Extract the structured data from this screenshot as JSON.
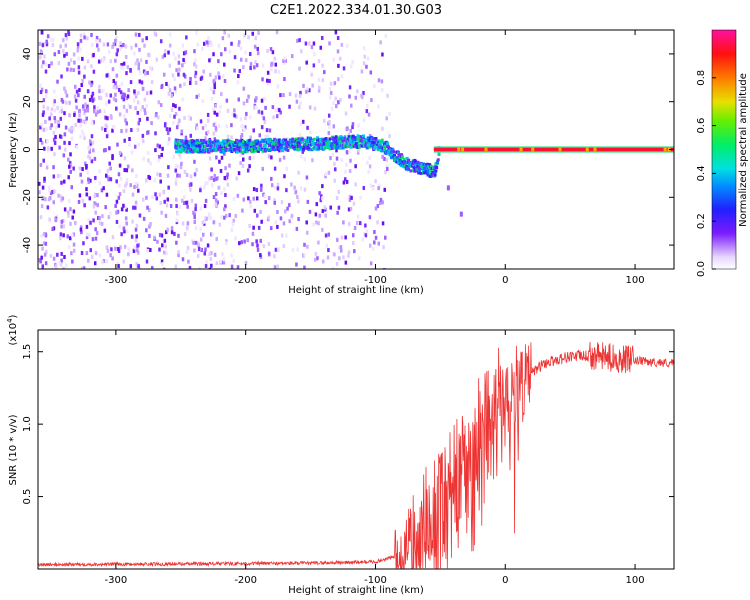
{
  "figure": {
    "title": "C2E1.2022.334.01.30.G03"
  },
  "chart_data": [
    {
      "type": "heatmap",
      "xlabel": "Height of straight line (km)",
      "ylabel": "Frequency (Hz)",
      "xlim": [
        -360,
        130
      ],
      "ylim": [
        -50,
        50
      ],
      "x_ticks": [
        -300,
        -200,
        -100,
        0,
        100
      ],
      "y_ticks": [
        -40,
        -20,
        0,
        20,
        40
      ],
      "colorbar": {
        "label": "Normalized spectral amplitude",
        "range": [
          0.0,
          1.0
        ],
        "ticks": [
          0.0,
          0.2,
          0.4,
          0.6,
          0.8
        ],
        "colormap": "white-purple-blue-cyan-green-yellow-red-magenta"
      },
      "signal_trace": {
        "description_points": [
          {
            "x": -255,
            "y": 2
          },
          {
            "x": -200,
            "y": 2
          },
          {
            "x": -150,
            "y": 3
          },
          {
            "x": -110,
            "y": 4
          },
          {
            "x": -95,
            "y": 2
          },
          {
            "x": -85,
            "y": -2
          },
          {
            "x": -75,
            "y": -6
          },
          {
            "x": -65,
            "y": -7
          },
          {
            "x": -55,
            "y": -9
          },
          {
            "x": -52,
            "y": 1
          },
          {
            "x": -40,
            "y": 2
          },
          {
            "x": -25,
            "y": 0
          },
          {
            "x": 0,
            "y": 0
          },
          {
            "x": 50,
            "y": 0
          },
          {
            "x": 100,
            "y": 0
          },
          {
            "x": 130,
            "y": 0
          }
        ],
        "noise_region_xlim": [
          -360,
          -95
        ],
        "tail_points": [
          {
            "x": -45,
            "y": -15
          },
          {
            "x": -35,
            "y": -26
          }
        ]
      }
    },
    {
      "type": "line",
      "xlabel": "Height of straight line (km)",
      "ylabel": "SNR (10 * v/v)",
      "y_multiplier_label": "(x10",
      "y_multiplier_exp": "4",
      "y_multiplier_close": ")",
      "xlim": [
        -360,
        130
      ],
      "ylim": [
        0,
        1.65
      ],
      "x_ticks": [
        -300,
        -200,
        -100,
        0,
        100
      ],
      "y_ticks": [
        0.5,
        1.0,
        1.5
      ],
      "y_tick_labels": [
        "0.5",
        "1.0",
        "1.5"
      ],
      "series": [
        {
          "color": "#ee3333",
          "envelope": [
            {
              "x": -360,
              "y": 0.03
            },
            {
              "x": -150,
              "y": 0.04
            },
            {
              "x": -100,
              "y": 0.05
            },
            {
              "x": -80,
              "y": 0.1
            },
            {
              "x": -70,
              "y": 0.2
            },
            {
              "x": -60,
              "y": 0.3
            },
            {
              "x": -50,
              "y": 0.35
            },
            {
              "x": -40,
              "y": 0.5
            },
            {
              "x": -30,
              "y": 0.7
            },
            {
              "x": -20,
              "y": 0.85
            },
            {
              "x": -10,
              "y": 1.0
            },
            {
              "x": 0,
              "y": 1.1
            },
            {
              "x": 10,
              "y": 1.25
            },
            {
              "x": 20,
              "y": 1.35
            },
            {
              "x": 30,
              "y": 1.42
            },
            {
              "x": 50,
              "y": 1.47
            },
            {
              "x": 70,
              "y": 1.47
            },
            {
              "x": 90,
              "y": 1.45
            },
            {
              "x": 110,
              "y": 1.43
            },
            {
              "x": 130,
              "y": 1.42
            }
          ]
        }
      ]
    }
  ],
  "colors": {
    "axis": "#000000",
    "snr_line": "#ee3333"
  }
}
